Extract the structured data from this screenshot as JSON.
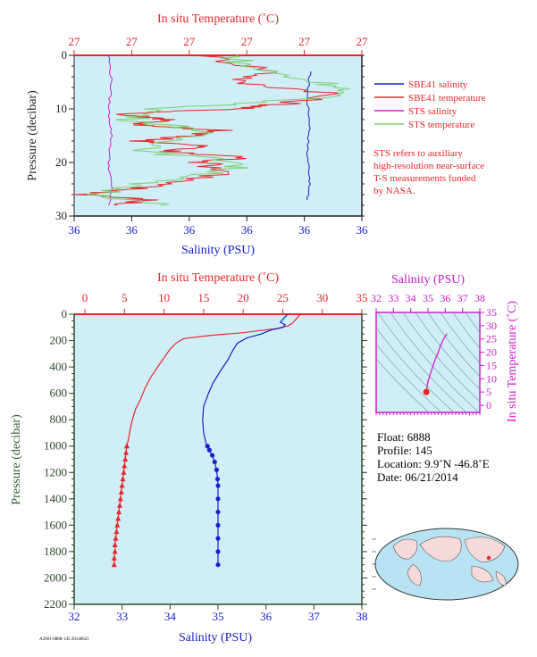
{
  "colors": {
    "plot_bg": "#cfeef7",
    "temperature": "#e8262a",
    "salinity": "#1520c8",
    "sts_salinity": "#d21ad2",
    "sts_temperature": "#7ccf6f",
    "axis_dark": "#2b4a2b",
    "pressure_label": "#2f5f2f"
  },
  "surface_panel": {
    "top_axis_title": "In situ Temperature (˚C)",
    "top_tick_labels": [
      "27",
      "27",
      "27",
      "27",
      "27",
      "27"
    ],
    "bottom_axis_title": "Salinity (PSU)",
    "bottom_tick_labels": [
      "36",
      "36",
      "36",
      "36",
      "36",
      "36"
    ],
    "y_axis_title": "Pressure (decibar)",
    "y_tick_labels": [
      "0",
      "10",
      "20",
      "30"
    ],
    "legend": [
      {
        "label": "SBE41 salinity",
        "color": "#1520c8"
      },
      {
        "label": "SBE41 temperature",
        "color": "#e8262a"
      },
      {
        "label": "STS salinity",
        "color": "#d21ad2"
      },
      {
        "label": "STS temperature",
        "color": "#7ccf6f"
      }
    ],
    "note": [
      "STS refers to auxiliary",
      "high-resolution near-surface",
      "T-S measurements funded",
      "by NASA."
    ]
  },
  "profile_panel": {
    "top_axis_title": "In situ Temperature (˚C)",
    "top_tick_labels": [
      "0",
      "5",
      "10",
      "15",
      "20",
      "25",
      "30",
      "35"
    ],
    "bottom_axis_title": "Salinity (PSU)",
    "bottom_tick_labels": [
      "32",
      "33",
      "34",
      "35",
      "36",
      "37",
      "38"
    ],
    "y_axis_title": "Pressure (decibar)",
    "y_tick_labels": [
      "0",
      "200",
      "400",
      "600",
      "800",
      "1000",
      "1200",
      "1400",
      "1600",
      "1800",
      "2000",
      "2200"
    ]
  },
  "ts_panel": {
    "top_axis_title": "Salinity (PSU)",
    "top_tick_labels": [
      "32",
      "33",
      "34",
      "35",
      "36",
      "37",
      "38"
    ],
    "right_axis_title": "In situ Temperature (˚C)",
    "right_tick_labels": [
      "0",
      "5",
      "10",
      "15",
      "20",
      "25",
      "30",
      "35"
    ]
  },
  "float_info": {
    "float_line": "Float:  6888",
    "profile_line": "Profile:  145",
    "location_line": "Location:  9.9˚N  -46.8˚E",
    "date_line": "Date:  06/21/2014"
  },
  "footer_code": "A2001-6888-145 20140621",
  "chart_data": [
    {
      "type": "line",
      "panel": "profile",
      "series": [
        {
          "name": "temperature",
          "axis": "top",
          "xlim": [
            0,
            35
          ],
          "ylim": [
            0,
            2200
          ],
          "points": [
            [
              27.2,
              0
            ],
            [
              27.1,
              10
            ],
            [
              26.8,
              30
            ],
            [
              26.5,
              50
            ],
            [
              26.2,
              70
            ],
            [
              25.6,
              90
            ],
            [
              24.0,
              110
            ],
            [
              20.0,
              140
            ],
            [
              16.0,
              160
            ],
            [
              12.5,
              185
            ],
            [
              11.5,
              220
            ],
            [
              10.7,
              270
            ],
            [
              10.0,
              330
            ],
            [
              9.2,
              400
            ],
            [
              8.4,
              470
            ],
            [
              7.6,
              560
            ],
            [
              7.0,
              650
            ],
            [
              6.4,
              720
            ],
            [
              6.0,
              800
            ],
            [
              5.7,
              880
            ],
            [
              5.5,
              950
            ],
            [
              5.3,
              1000
            ],
            [
              5.2,
              1050
            ],
            [
              5.1,
              1100
            ],
            [
              5.0,
              1150
            ],
            [
              4.9,
              1200
            ],
            [
              4.8,
              1250
            ],
            [
              4.7,
              1300
            ],
            [
              4.6,
              1350
            ],
            [
              4.5,
              1400
            ],
            [
              4.4,
              1450
            ],
            [
              4.3,
              1500
            ],
            [
              4.2,
              1550
            ],
            [
              4.1,
              1600
            ],
            [
              4.0,
              1650
            ],
            [
              3.9,
              1700
            ],
            [
              3.8,
              1750
            ],
            [
              3.8,
              1800
            ],
            [
              3.7,
              1850
            ],
            [
              3.7,
              1900
            ]
          ]
        },
        {
          "name": "salinity",
          "axis": "bottom",
          "xlim": [
            32,
            38
          ],
          "ylim": [
            0,
            2200
          ],
          "points": [
            [
              36.45,
              0
            ],
            [
              36.4,
              20
            ],
            [
              36.35,
              40
            ],
            [
              36.3,
              60
            ],
            [
              36.4,
              80
            ],
            [
              36.35,
              100
            ],
            [
              36.1,
              120
            ],
            [
              35.9,
              150
            ],
            [
              35.6,
              180
            ],
            [
              35.4,
              220
            ],
            [
              35.3,
              280
            ],
            [
              35.2,
              350
            ],
            [
              35.05,
              430
            ],
            [
              34.9,
              520
            ],
            [
              34.8,
              600
            ],
            [
              34.7,
              700
            ],
            [
              34.68,
              800
            ],
            [
              34.7,
              900
            ],
            [
              34.75,
              980
            ],
            [
              34.78,
              1000
            ],
            [
              34.82,
              1030
            ],
            [
              34.88,
              1070
            ],
            [
              34.93,
              1120
            ],
            [
              34.97,
              1180
            ],
            [
              34.99,
              1250
            ],
            [
              35.0,
              1300
            ],
            [
              35.0,
              1400
            ],
            [
              35.0,
              1500
            ],
            [
              35.0,
              1600
            ],
            [
              35.0,
              1700
            ],
            [
              35.0,
              1800
            ],
            [
              35.0,
              1900
            ]
          ]
        }
      ]
    },
    {
      "type": "line",
      "panel": "surface",
      "ylim": [
        0,
        30
      ],
      "series": [
        {
          "name": "SBE41 salinity",
          "points": [
            [
              0.82,
              3
            ],
            [
              0.81,
              8
            ],
            [
              0.82,
              13
            ],
            [
              0.81,
              18
            ],
            [
              0.82,
              23
            ],
            [
              0.81,
              27
            ]
          ]
        },
        {
          "name": "SBE41 temperature",
          "points": [
            [
              0.45,
              0
            ],
            [
              0.7,
              3
            ],
            [
              0.55,
              5
            ],
            [
              0.9,
              7
            ],
            [
              0.75,
              9
            ],
            [
              0.55,
              10
            ],
            [
              0.15,
              11
            ],
            [
              0.35,
              12
            ],
            [
              0.2,
              13
            ],
            [
              0.5,
              14
            ],
            [
              0.4,
              15
            ],
            [
              0.25,
              16
            ],
            [
              0.45,
              17
            ],
            [
              0.3,
              18
            ],
            [
              0.6,
              19
            ],
            [
              0.45,
              20
            ],
            [
              0.55,
              22
            ],
            [
              0.3,
              24
            ],
            [
              0.2,
              25
            ],
            [
              0.05,
              26
            ],
            [
              0.25,
              27
            ],
            [
              0.15,
              28
            ]
          ]
        },
        {
          "name": "STS salinity",
          "points": [
            [
              0.12,
              0
            ],
            [
              0.13,
              5
            ],
            [
              0.12,
              10
            ],
            [
              0.13,
              15
            ],
            [
              0.12,
              20
            ],
            [
              0.13,
              25
            ],
            [
              0.12,
              28
            ]
          ]
        },
        {
          "name": "STS temperature",
          "points": [
            [
              0.55,
              0
            ],
            [
              0.6,
              2
            ],
            [
              0.75,
              4
            ],
            [
              0.95,
              6
            ],
            [
              0.85,
              8
            ],
            [
              0.3,
              10
            ],
            [
              0.2,
              12
            ],
            [
              0.45,
              14
            ],
            [
              0.35,
              16
            ],
            [
              0.25,
              18
            ],
            [
              0.6,
              20
            ],
            [
              0.5,
              22
            ],
            [
              0.2,
              24
            ],
            [
              0.1,
              26
            ],
            [
              0.3,
              28
            ]
          ]
        }
      ]
    },
    {
      "type": "line",
      "panel": "ts",
      "xlim": [
        32,
        38
      ],
      "ylim": [
        0,
        35
      ],
      "points": [
        [
          34.9,
          5
        ],
        [
          34.95,
          7
        ],
        [
          35.0,
          9
        ],
        [
          35.1,
          11
        ],
        [
          35.25,
          14
        ],
        [
          35.4,
          17
        ],
        [
          35.6,
          20
        ],
        [
          35.7,
          22
        ],
        [
          35.9,
          25
        ],
        [
          36.1,
          27
        ]
      ]
    }
  ]
}
